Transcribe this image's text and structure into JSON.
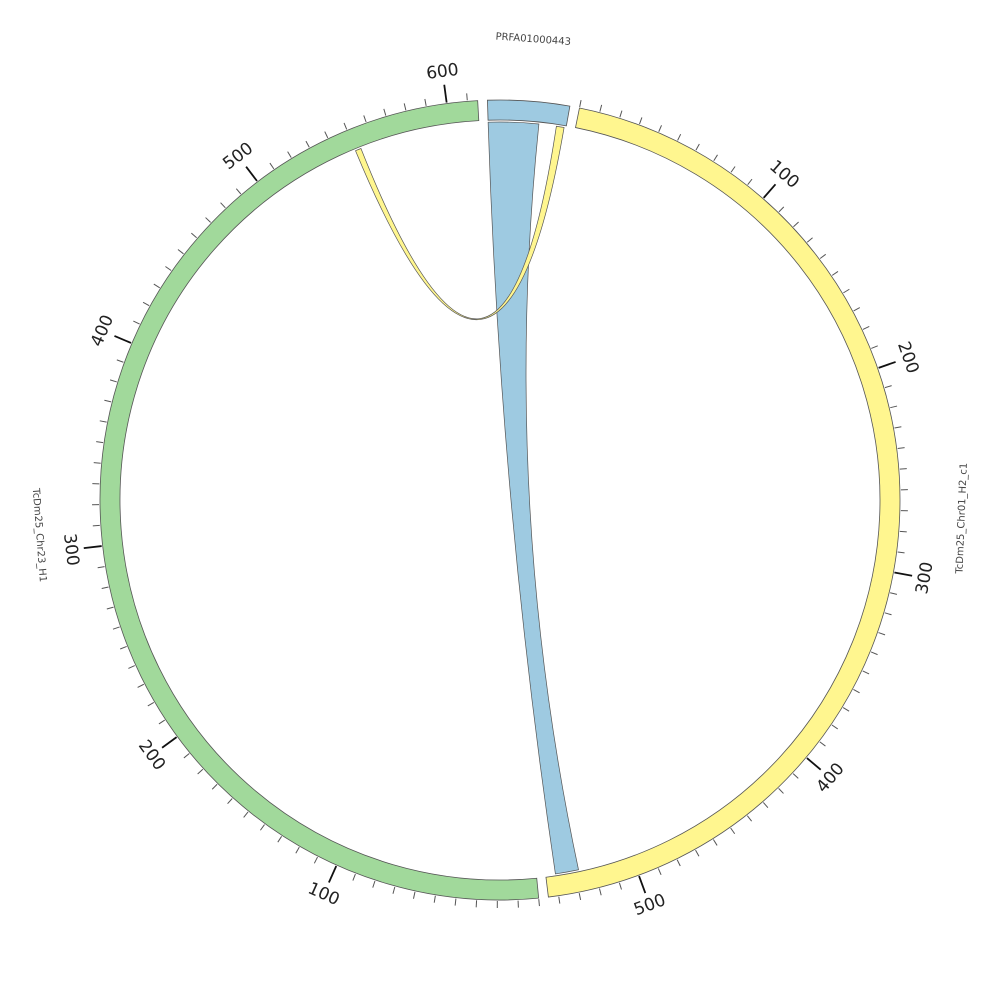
{
  "chart_data": {
    "type": "chord",
    "segments": [
      {
        "id": "PRFA01000443",
        "label": "PRFA01000443",
        "length": 40,
        "color": "#9ecae1",
        "ticks": false
      },
      {
        "id": "chr01",
        "label": "TcDm25_Chr01_H2_c1",
        "length": 545,
        "color": "#fff68f",
        "ticks": true
      },
      {
        "id": "chr23",
        "label": "TcDm25_Chr23_H1",
        "length": 615,
        "color": "#a1d99b",
        "ticks": true
      }
    ],
    "tick_labels": {
      "chr01": [
        "100",
        "200",
        "300",
        "400",
        "500"
      ],
      "chr23": [
        "100",
        "200",
        "300",
        "400",
        "500",
        "600"
      ]
    },
    "links": [
      {
        "from": {
          "segment": "PRFA01000443",
          "start": 0,
          "end": 26
        },
        "to": {
          "segment": "chr01",
          "start": 528,
          "end": 540
        },
        "color": "#9ecae1"
      },
      {
        "from": {
          "segment": "PRFA01000443",
          "start": 35,
          "end": 39
        },
        "to": {
          "segment": "chr23",
          "start": 550,
          "end": 553
        },
        "color": "#fff68f"
      }
    ]
  }
}
